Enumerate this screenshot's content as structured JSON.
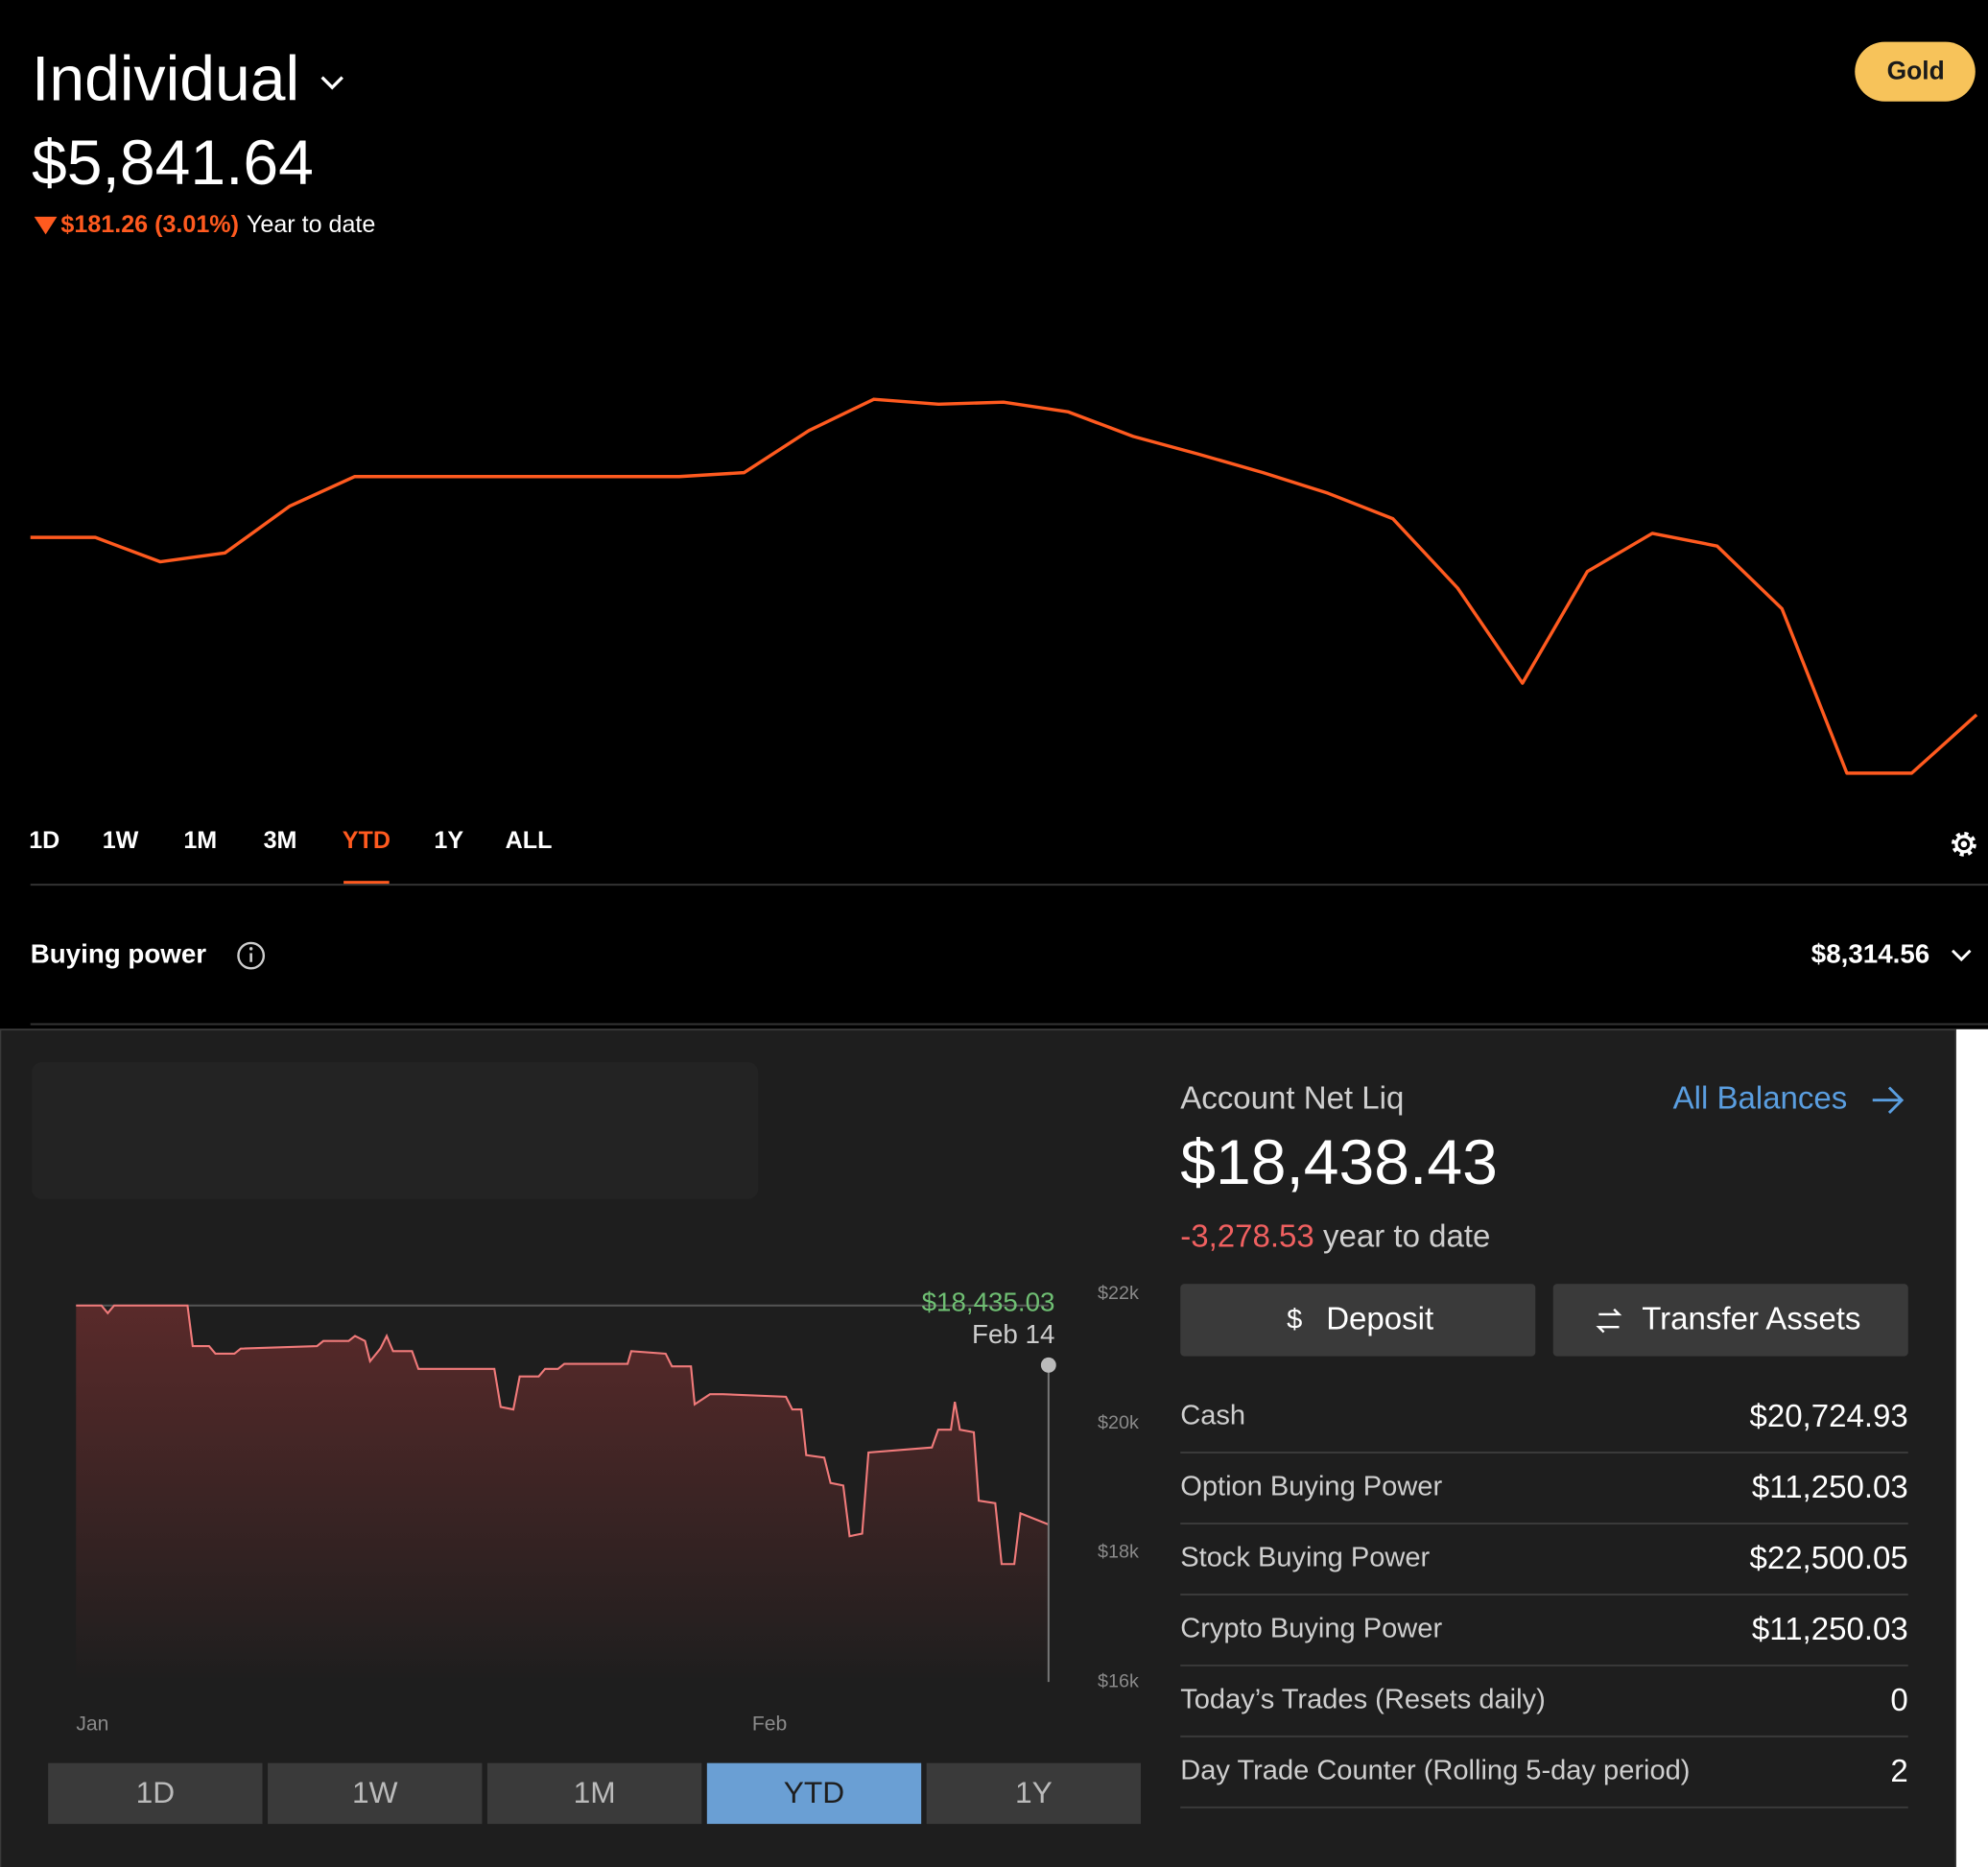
{
  "header": {
    "account": "Individual",
    "badge": "Gold",
    "balance": "$5,841.64",
    "change": "$181.26 (3.01%)",
    "change_period": "Year to date"
  },
  "portfolio_chart": {
    "type": "line",
    "color": "#ff5a1f",
    "values": [
      6022.9,
      6022.9,
      5998,
      6007,
      6055,
      6085,
      6085,
      6085,
      6085,
      6085,
      6085,
      6089,
      6132,
      6164,
      6159,
      6161,
      6151,
      6126,
      6108,
      6089,
      6068,
      6042,
      5971,
      5874,
      5988,
      6027,
      6014,
      5950,
      5782,
      5782,
      5841.64
    ]
  },
  "range_tabs": {
    "items": [
      "1D",
      "1W",
      "1M",
      "3M",
      "YTD",
      "1Y",
      "ALL"
    ],
    "selected": 4
  },
  "buying_power": {
    "label": "Buying power",
    "value": "$8,314.56"
  },
  "net_liq_chart": {
    "type": "line",
    "color": "#f07a7a",
    "x": [
      0.25,
      1.41,
      1.7,
      1.99,
      4.6,
      5.35,
      5.59,
      6.34,
      6.63,
      7.5,
      7.79,
      11.28,
      11.57,
      12.73,
      13.02,
      13.48,
      13.71,
      14.18,
      14.47,
      14.76,
      15.63,
      15.92,
      19.4,
      19.69,
      20.27,
      20.56,
      21.43,
      21.72,
      22.31,
      22.6,
      25.5,
      25.67,
      27.24,
      27.53,
      28.4,
      28.57,
      29.27,
      29.85,
      32.75,
      33.04,
      33.45,
      33.68,
      34.5,
      34.79,
      35.37,
      35.66,
      36.24,
      36.53,
      39.43,
      39.72,
      40.3,
      40.48,
      40.71,
      41.35,
      41.58,
      42.33,
      42.62,
      43.2,
      43.49,
      44.77
    ],
    "values": [
      21824,
      21824,
      21706,
      21824,
      21824,
      21824,
      21196,
      21196,
      21078,
      21078,
      21157,
      21196,
      21275,
      21275,
      21353,
      21275,
      20961,
      21157,
      21353,
      21118,
      21118,
      20843,
      20843,
      20255,
      20216,
      20725,
      20725,
      20843,
      20843,
      20922,
      20922,
      21118,
      21078,
      20882,
      20882,
      20294,
      20451,
      20451,
      20412,
      20216,
      20216,
      19510,
      19471,
      19078,
      19039,
      18255,
      18294,
      19549,
      19627,
      19902,
      19902,
      20333,
      19902,
      19863,
      18804,
      18765,
      17824,
      17824,
      18608,
      18435.03
    ],
    "xlim": [
      0.25,
      44.77
    ],
    "ylim": [
      16000,
      22000
    ],
    "xticks": [
      {
        "value": 1,
        "label": "Jan"
      },
      {
        "value": 32,
        "label": "Feb"
      }
    ],
    "yticks": [
      {
        "value": 16000,
        "label": "$16k"
      },
      {
        "value": 18000,
        "label": "$18k"
      },
      {
        "value": 20000,
        "label": "$20k"
      },
      {
        "value": 22000,
        "label": "$22k"
      }
    ],
    "tooltip_value": "$18,435.03",
    "tooltip_date": "Feb 14"
  },
  "chart_tabs": {
    "items": [
      "1D",
      "1W",
      "1M",
      "YTD",
      "1Y"
    ],
    "selected": 3
  },
  "account": {
    "title": "Account Net Liq",
    "link": "All Balances",
    "value": "$18,438.43",
    "change": "-3,278.53",
    "change_period": "year to date",
    "buttons": [
      "Deposit",
      "Transfer Assets"
    ],
    "rows": [
      [
        "Cash",
        "$20,724.93"
      ],
      [
        "Option Buying Power",
        "$11,250.03"
      ],
      [
        "Stock Buying Power",
        "$22,500.05"
      ],
      [
        "Crypto Buying Power",
        "$11,250.03"
      ],
      [
        "Today’s Trades (Resets daily)",
        "0"
      ],
      [
        "Day Trade Counter (Rolling 5-day period)",
        "2"
      ]
    ]
  }
}
